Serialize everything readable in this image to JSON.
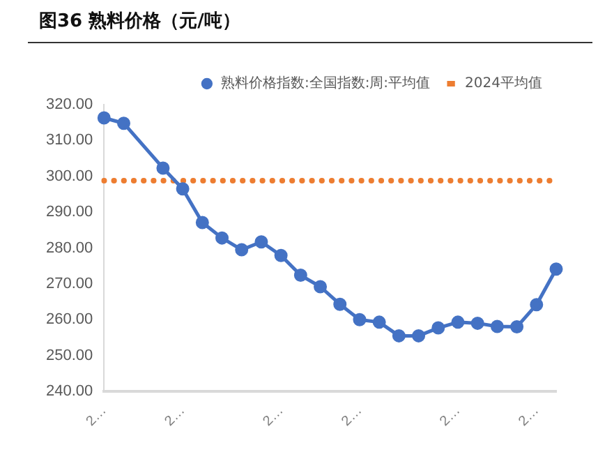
{
  "chart_data": {
    "type": "line",
    "title": "图36 熟料价格（元/吨）",
    "categories": [
      "2…",
      null,
      null,
      null,
      "2…",
      null,
      null,
      null,
      null,
      "2…",
      null,
      null,
      null,
      "2…",
      null,
      null,
      null,
      null,
      "2…",
      null,
      null,
      null,
      "2…",
      null
    ],
    "series": [
      {
        "name": "熟料价格指数:全国指数:周:平均值",
        "color": "#4472c4",
        "marker": "circle",
        "line_style": "solid",
        "values": [
          316.3,
          314.8,
          null,
          302.3,
          296.5,
          287.1,
          282.8,
          279.5,
          281.7,
          277.9,
          272.4,
          269.2,
          264.3,
          260,
          259.3,
          255.5,
          255.5,
          257.7,
          259.3,
          259,
          258.1,
          258,
          264.2,
          274.1
        ]
      },
      {
        "name": "2024平均值",
        "color": "#ed7d31",
        "marker": "none",
        "line_style": "dotted",
        "values": [
          298.8,
          298.8,
          298.8,
          298.8,
          298.8,
          298.8,
          298.8,
          298.8,
          298.8,
          298.8,
          298.8,
          298.8,
          298.8,
          298.8,
          298.8,
          298.8,
          298.8,
          298.8,
          298.8,
          298.8,
          298.8,
          298.8,
          298.8,
          298.8
        ]
      }
    ],
    "ylim": [
      240,
      320
    ],
    "yticks": [
      {
        "value": 240,
        "label": "240.00"
      },
      {
        "value": 250,
        "label": "250.00"
      },
      {
        "value": 260,
        "label": "260.00"
      },
      {
        "value": 270,
        "label": "270.00"
      },
      {
        "value": 280,
        "label": "280.00"
      },
      {
        "value": 290,
        "label": "290.00"
      },
      {
        "value": 300,
        "label": "300.00"
      },
      {
        "value": 310,
        "label": "310.00"
      },
      {
        "value": 320,
        "label": "320.00"
      }
    ],
    "grid": false,
    "legend": "top"
  }
}
